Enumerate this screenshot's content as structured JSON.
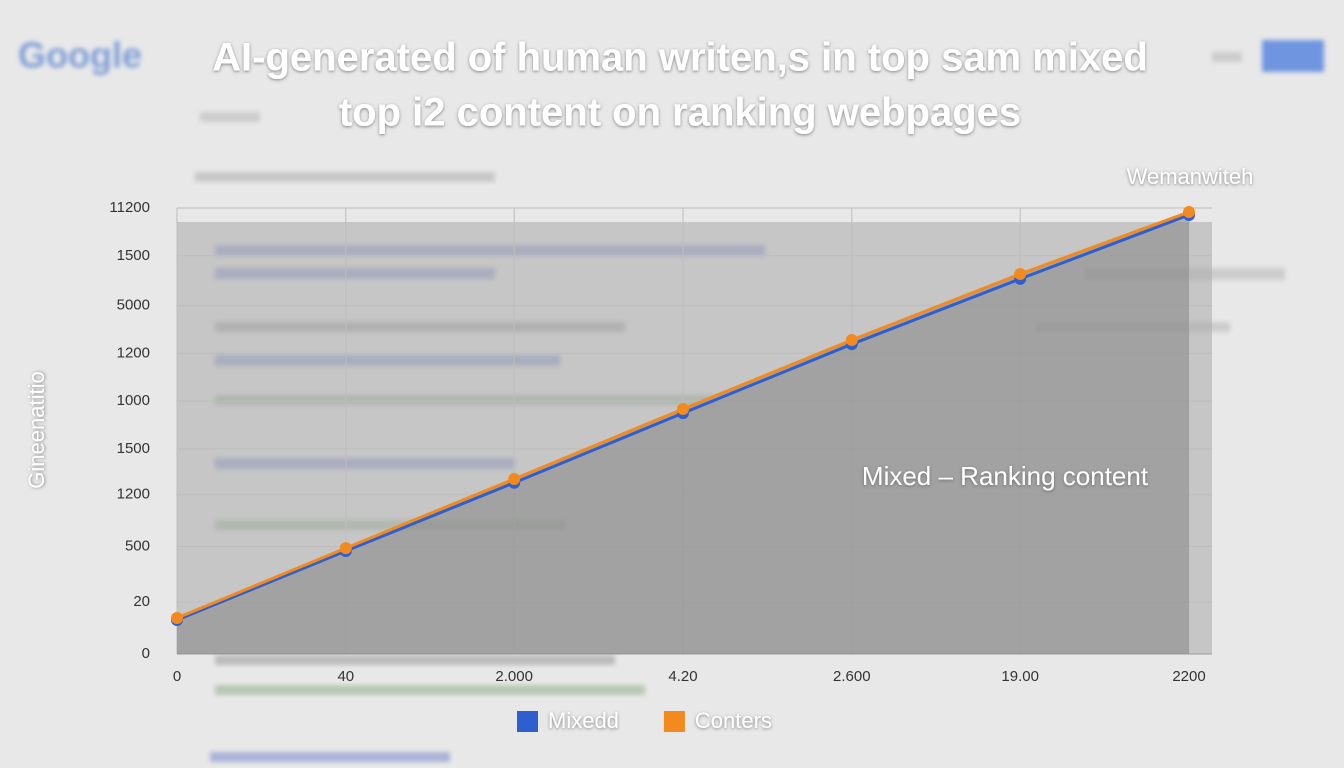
{
  "brand": "Google",
  "chart_data": {
    "type": "line",
    "title": [
      "AI-generated of human writen,s in  top sam mixed",
      "top i2 content on ranking webpages"
    ],
    "ylabel": "Gineenatitio",
    "annotations": [
      "Wemanwiteh",
      "Mixed – Ranking content"
    ],
    "x": [
      0,
      367,
      733,
      1100,
      1467,
      1833,
      2200
    ],
    "xlim": [
      0,
      2200
    ],
    "xticks": [
      0,
      {
        "value": 367,
        "label": "40"
      },
      {
        "value": 733,
        "label": "2.000"
      },
      {
        "value": 1100,
        "label": "4.20"
      },
      {
        "value": 1467,
        "label": "2.600"
      },
      {
        "value": 1833,
        "label": "19.00"
      },
      2200
    ],
    "ylim": [
      0,
      11200
    ],
    "yticks": [
      0,
      {
        "value": 1300,
        "label": "20"
      },
      {
        "value": 2700,
        "label": "500"
      },
      {
        "value": 4000,
        "label": "1200"
      },
      {
        "value": 5150,
        "label": "1500"
      },
      {
        "value": 6350,
        "label": "1000"
      },
      {
        "value": 7550,
        "label": "1200"
      },
      {
        "value": 8750,
        "label": "5000"
      },
      {
        "value": 10000,
        "label": "1500"
      },
      {
        "value": 11200,
        "label": "11200"
      }
    ],
    "grid": true,
    "series": [
      {
        "name": "Mixedd",
        "color": "#2f5fcf",
        "values": [
          854,
          2587,
          4300,
          6050,
          7780,
          9420,
          11024
        ]
      },
      {
        "name": "Conters",
        "color": "#f28a1e",
        "values": [
          904,
          2660,
          4395,
          6152,
          7885,
          9543,
          11100
        ]
      }
    ]
  }
}
